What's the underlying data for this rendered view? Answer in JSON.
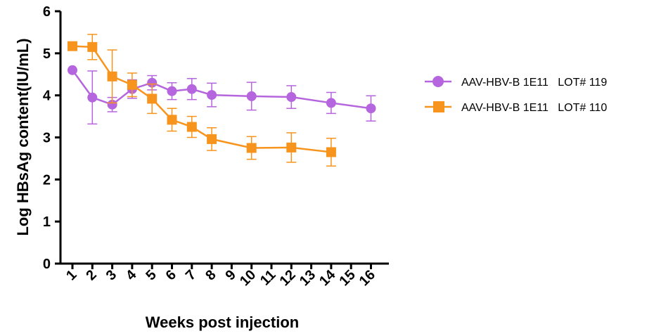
{
  "chart_data": {
    "type": "line",
    "xlabel": "Weeks post injection",
    "ylabel": "Log HBsAg content(IU/mL)",
    "categories": [
      "1",
      "2",
      "3",
      "4",
      "5",
      "6",
      "7",
      "8",
      "9",
      "10",
      "11",
      "12",
      "13",
      "14",
      "15",
      "16"
    ],
    "ylim": [
      0,
      6
    ],
    "yticks": [
      0,
      1,
      2,
      3,
      4,
      5,
      6
    ],
    "grid": false,
    "legend_position": "right",
    "series": [
      {
        "name": "AAV-HBV-B 1E11   LOT# 119",
        "color": "#b565dd",
        "marker": "circle",
        "points": [
          {
            "x": "1",
            "y": 4.6,
            "err": 0
          },
          {
            "x": "2",
            "y": 3.95,
            "err": 0.63
          },
          {
            "x": "3",
            "y": 3.78,
            "err": 0.17
          },
          {
            "x": "4",
            "y": 4.15,
            "err": 0.22
          },
          {
            "x": "5",
            "y": 4.3,
            "err": 0.17
          },
          {
            "x": "6",
            "y": 4.1,
            "err": 0.2
          },
          {
            "x": "7",
            "y": 4.15,
            "err": 0.25
          },
          {
            "x": "8",
            "y": 4.01,
            "err": 0.28
          },
          {
            "x": "10",
            "y": 3.98,
            "err": 0.33
          },
          {
            "x": "12",
            "y": 3.96,
            "err": 0.27
          },
          {
            "x": "14",
            "y": 3.82,
            "err": 0.25
          },
          {
            "x": "16",
            "y": 3.69,
            "err": 0.3
          }
        ]
      },
      {
        "name": "AAV-HBV-B 1E11   LOT# 110",
        "color": "#f7941d",
        "marker": "square",
        "points": [
          {
            "x": "1",
            "y": 5.17,
            "err": 0
          },
          {
            "x": "2",
            "y": 5.15,
            "err": 0.3
          },
          {
            "x": "3",
            "y": 4.45,
            "err": 0.63
          },
          {
            "x": "4",
            "y": 4.25,
            "err": 0.28
          },
          {
            "x": "5",
            "y": 3.92,
            "err": 0.35
          },
          {
            "x": "6",
            "y": 3.42,
            "err": 0.27
          },
          {
            "x": "7",
            "y": 3.25,
            "err": 0.25
          },
          {
            "x": "8",
            "y": 2.96,
            "err": 0.27
          },
          {
            "x": "10",
            "y": 2.75,
            "err": 0.27
          },
          {
            "x": "12",
            "y": 2.76,
            "err": 0.35
          },
          {
            "x": "14",
            "y": 2.65,
            "err": 0.33
          }
        ]
      }
    ]
  }
}
